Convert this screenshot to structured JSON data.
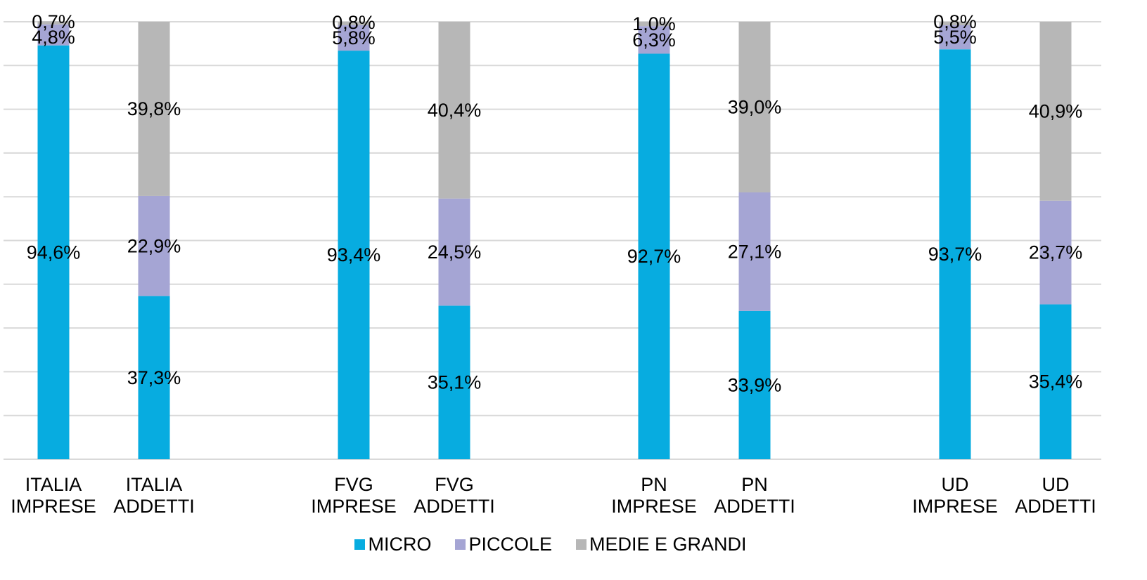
{
  "chart_data": {
    "type": "bar",
    "stacked": true,
    "categories": [
      [
        "ITALIA",
        "IMPRESE"
      ],
      [
        "ITALIA",
        "ADDETTI"
      ],
      [
        "FVG",
        "IMPRESE"
      ],
      [
        "FVG",
        "ADDETTI"
      ],
      [
        "PN",
        "IMPRESE"
      ],
      [
        "PN",
        "ADDETTI"
      ],
      [
        "UD",
        "IMPRESE"
      ],
      [
        "UD",
        "ADDETTI"
      ]
    ],
    "series": [
      {
        "name": "MICRO",
        "color": "#07ace0",
        "values": [
          94.6,
          37.3,
          93.4,
          35.1,
          92.7,
          33.9,
          93.7,
          35.4
        ],
        "labels": [
          "94,6%",
          "37,3%",
          "93,4%",
          "35,1%",
          "92,7%",
          "33,9%",
          "93,7%",
          "35,4%"
        ]
      },
      {
        "name": "PICCOLE",
        "color": "#a5a5d4",
        "values": [
          4.8,
          22.9,
          5.8,
          24.5,
          6.3,
          27.1,
          5.5,
          23.7
        ],
        "labels": [
          "4,8%",
          "22,9%",
          "5,8%",
          "24,5%",
          "6,3%",
          "27,1%",
          "5,5%",
          "23,7%"
        ]
      },
      {
        "name": "MEDIE E GRANDI",
        "color": "#b7b7b7",
        "values": [
          0.7,
          39.8,
          0.8,
          40.4,
          1.0,
          39.0,
          0.8,
          40.9
        ],
        "labels": [
          "0,7%",
          "39,8%",
          "0,8%",
          "40,4%",
          "1,0%",
          "39,0%",
          "0,8%",
          "40,9%"
        ]
      }
    ],
    "ylim": [
      0,
      100
    ],
    "grid": true,
    "legend_position": "bottom"
  }
}
